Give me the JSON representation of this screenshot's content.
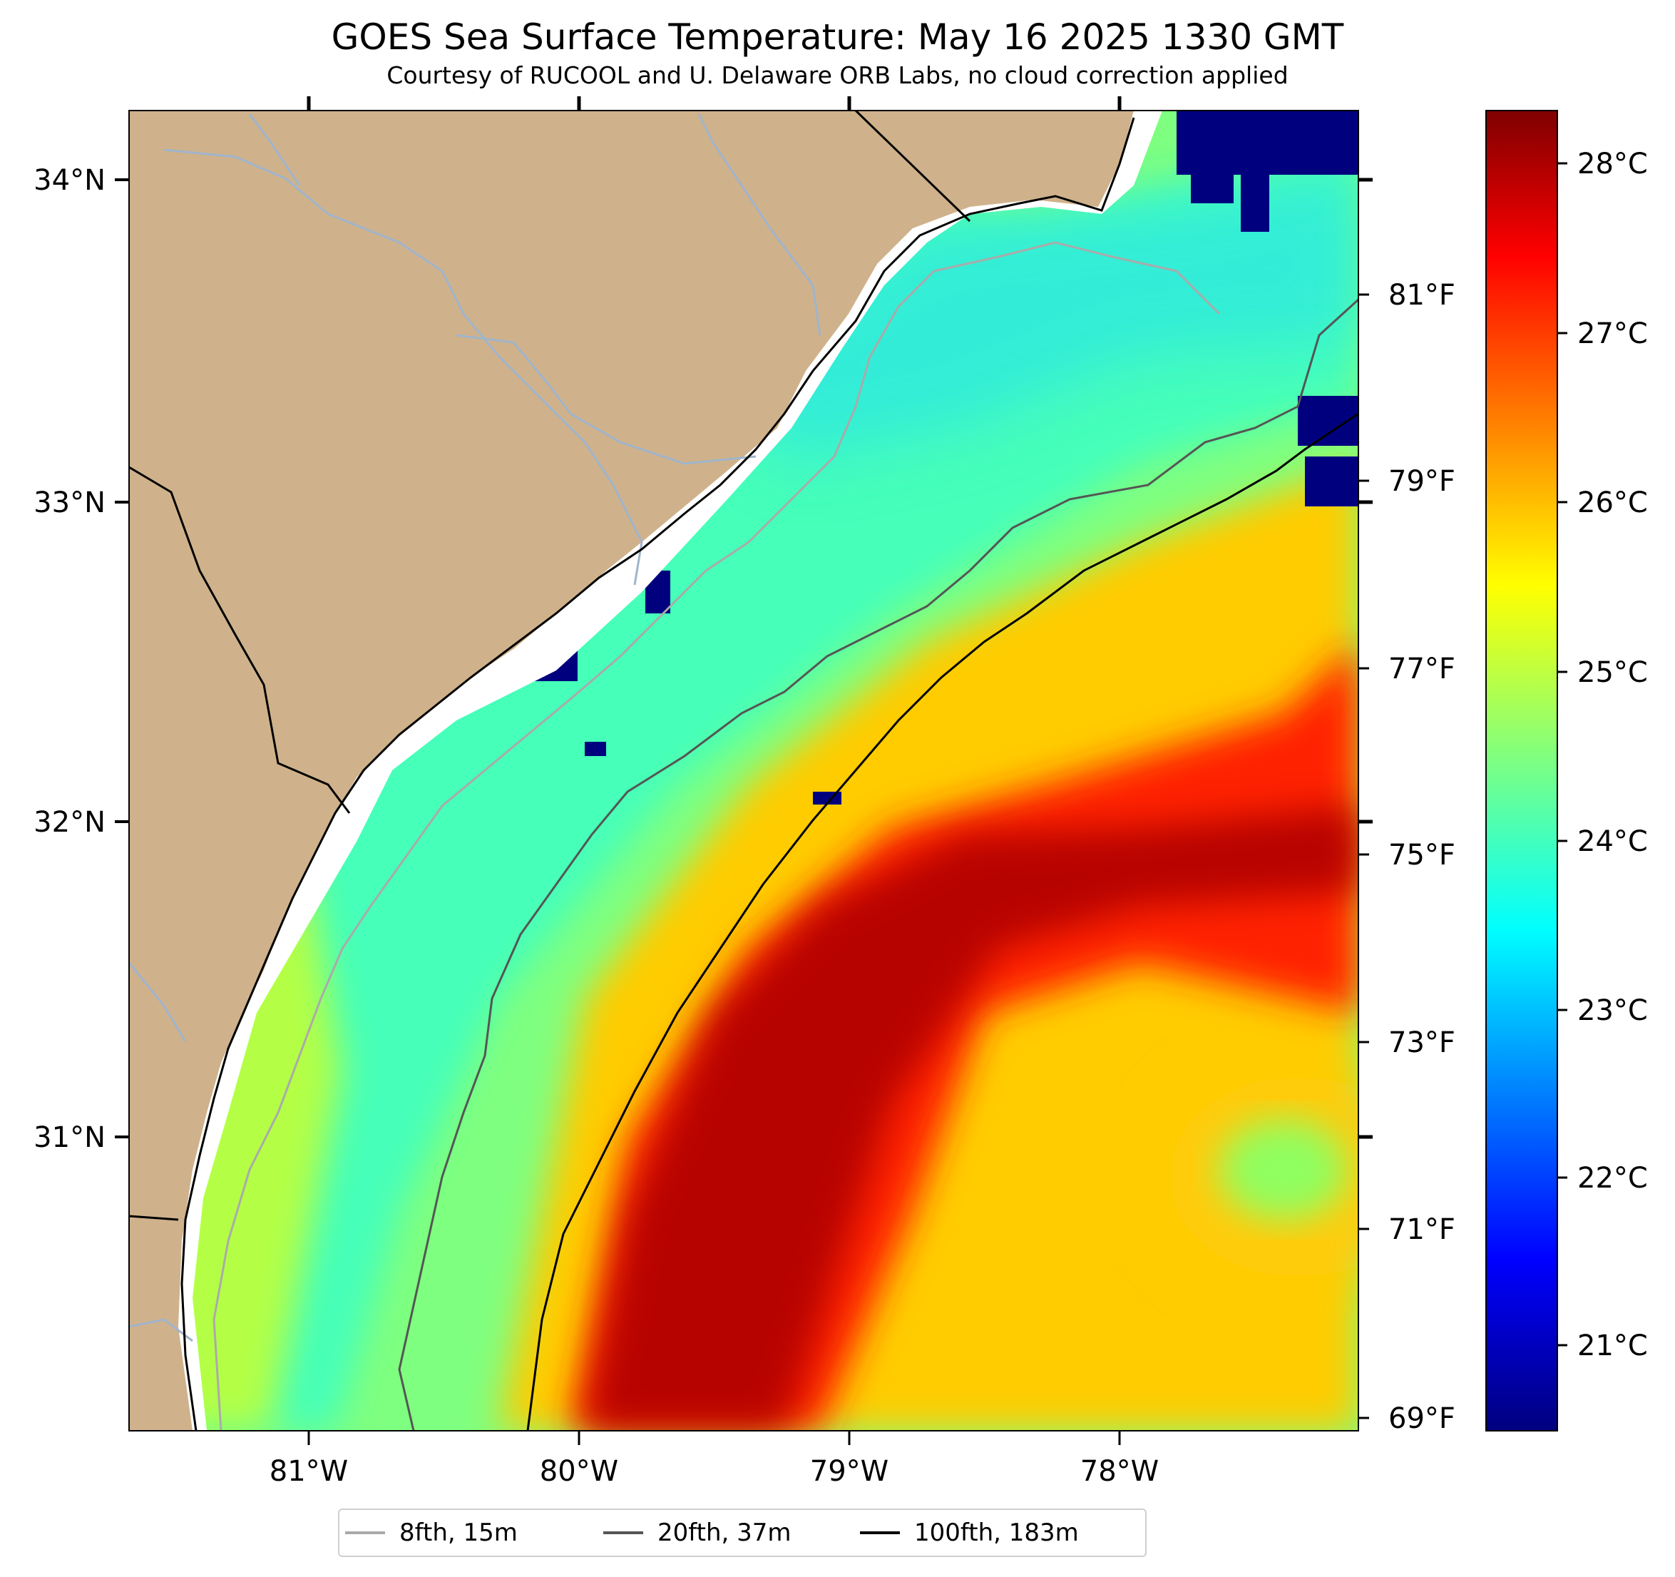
{
  "title": "GOES Sea Surface Temperature: May 16 2025 1330 GMT",
  "subtitle": "Courtesy of RUCOOL and U. Delaware ORB Labs, no cloud correction applied",
  "map": {
    "lon_range": [
      -81.67,
      -77.1
    ],
    "lat_range": [
      30.12,
      34.22
    ],
    "lon_ticks": [
      "81°W",
      "80°W",
      "79°W",
      "78°W"
    ],
    "lat_ticks": [
      "34°N",
      "33°N",
      "32°N",
      "31°N"
    ],
    "land_color": "#cfb28b",
    "river_color": "#a0b4cc"
  },
  "colorbar": {
    "celsius_labels": [
      "28°C",
      "27°C",
      "26°C",
      "25°C",
      "24°C",
      "23°C",
      "22°C",
      "21°C"
    ],
    "fahrenheit_labels": [
      "81°F",
      "79°F",
      "77°F",
      "75°F",
      "73°F",
      "71°F",
      "69°F"
    ],
    "range_c": [
      20.5,
      28.3
    ],
    "colormap": "jet"
  },
  "legend": [
    {
      "label": "8fth, 15m",
      "color": "#aaaaaa"
    },
    {
      "label": "20fth, 37m",
      "color": "#555555"
    },
    {
      "label": "100fth, 183m",
      "color": "#000000"
    }
  ]
}
